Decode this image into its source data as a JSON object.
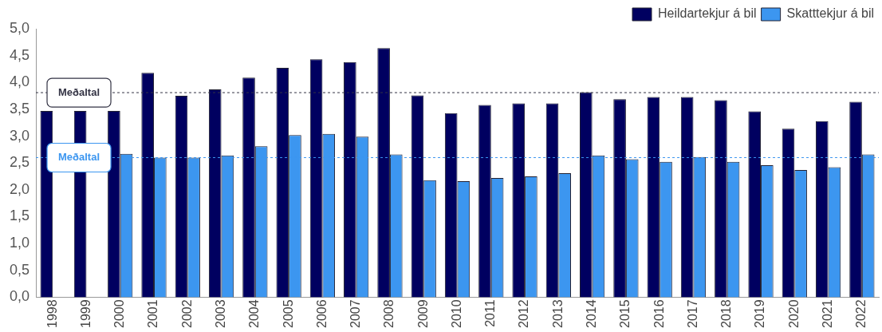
{
  "chart_data": {
    "type": "bar",
    "categories": [
      "1998",
      "1999",
      "2000",
      "2001",
      "2002",
      "2003",
      "2004",
      "2005",
      "2006",
      "2007",
      "2008",
      "2009",
      "2010",
      "2011",
      "2012",
      "2013",
      "2014",
      "2015",
      "2016",
      "2017",
      "2018",
      "2019",
      "2020",
      "2021",
      "2022"
    ],
    "series": [
      {
        "name": "Heildartekjur á bil",
        "color": "#000060",
        "values": [
          3.47,
          3.47,
          3.47,
          4.18,
          3.75,
          3.87,
          4.09,
          4.27,
          4.43,
          4.38,
          4.64,
          3.76,
          3.43,
          3.58,
          3.61,
          3.61,
          3.82,
          3.69,
          3.73,
          3.73,
          3.67,
          3.46,
          3.14,
          3.28,
          3.64
        ]
      },
      {
        "name": "Skatttekjur á bil",
        "color": "#3c96f0",
        "values": [
          null,
          null,
          2.67,
          2.6,
          2.6,
          2.64,
          2.81,
          3.02,
          3.04,
          2.99,
          2.66,
          2.18,
          2.16,
          2.22,
          2.25,
          2.31,
          2.64,
          2.57,
          2.52,
          2.61,
          2.52,
          2.46,
          2.37,
          2.42,
          2.66
        ]
      }
    ],
    "ylim": [
      0,
      5
    ],
    "yticks": [
      {
        "value": 0,
        "label": "0,0"
      },
      {
        "value": 0.5,
        "label": "0,5"
      },
      {
        "value": 1,
        "label": "1,0"
      },
      {
        "value": 1.5,
        "label": "1,5"
      },
      {
        "value": 2,
        "label": "2,0"
      },
      {
        "value": 2.5,
        "label": "2,5"
      },
      {
        "value": 3,
        "label": "3,0"
      },
      {
        "value": 3.5,
        "label": "3,5"
      },
      {
        "value": 4,
        "label": "4,0"
      },
      {
        "value": 4.5,
        "label": "4,5"
      },
      {
        "value": 5,
        "label": "5,0"
      }
    ],
    "ref_lines": [
      {
        "axis": "y",
        "value": 3.81,
        "label": "Meðaltal",
        "color": "#333344",
        "line_style": "dashed"
      },
      {
        "axis": "y",
        "value": 2.6,
        "label": "Meðaltal",
        "color": "#3c96f0",
        "line_style": "dashed"
      }
    ],
    "grid": false,
    "legend": "top right"
  }
}
